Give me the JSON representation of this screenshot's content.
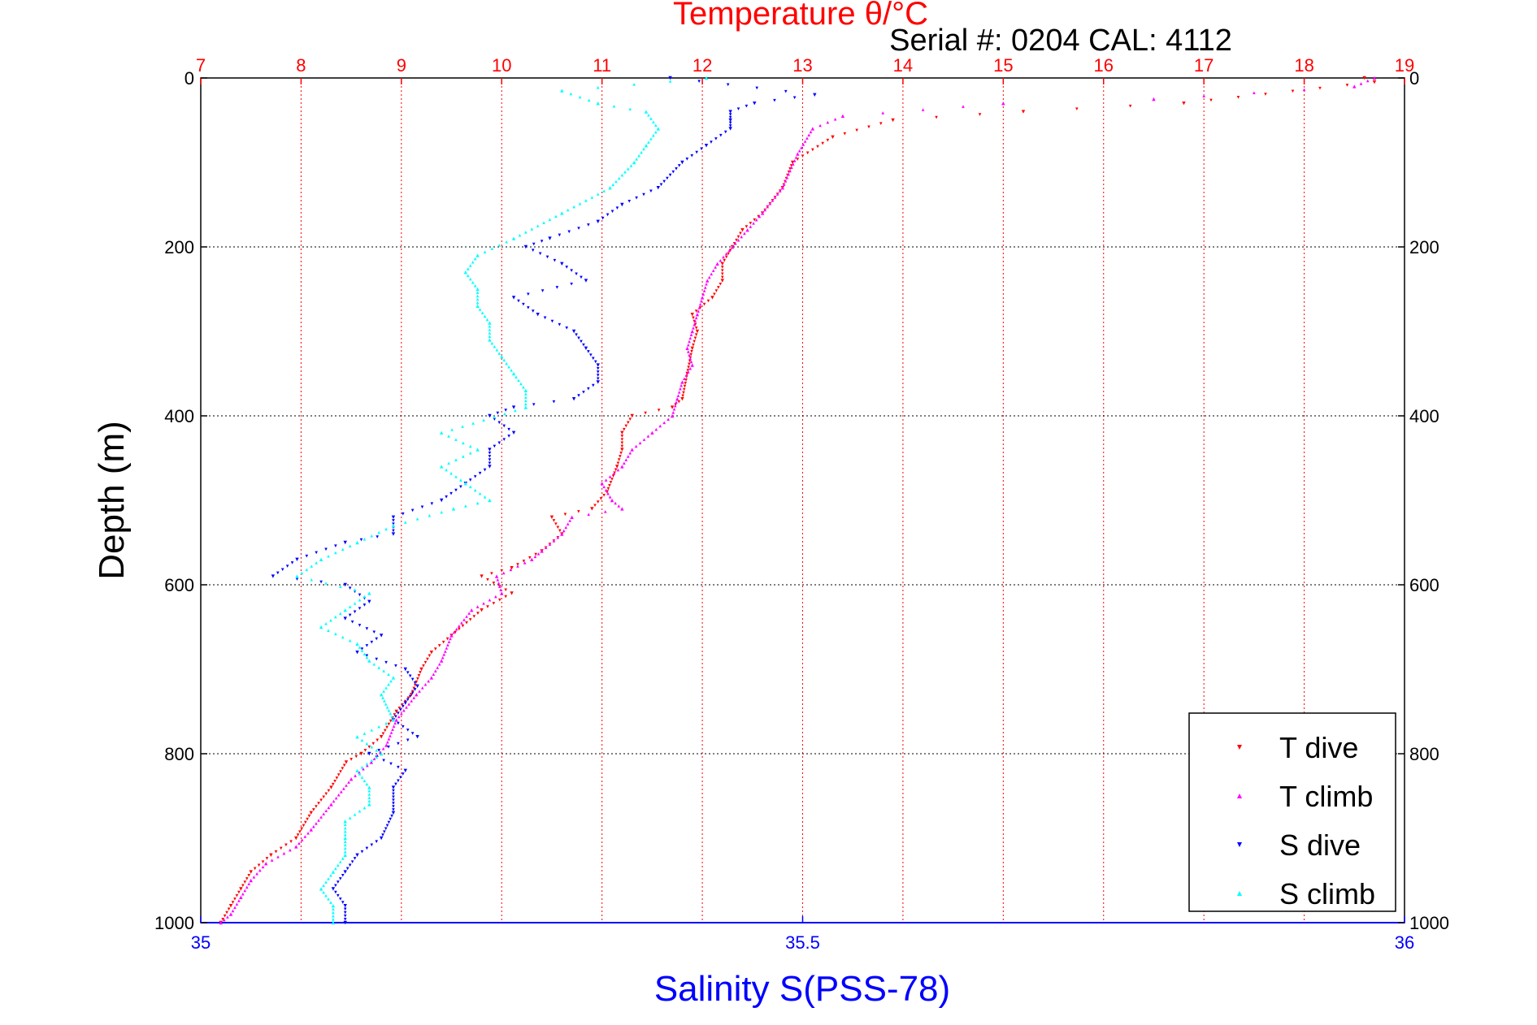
{
  "chart_data": {
    "type": "scatter",
    "title": "Temperature θ/°C",
    "subtitle": "Serial #: 0204  CAL: 4112",
    "ylabel": "Depth (m)",
    "xlabel_bottom": "Salinity S(PSS-78)",
    "ylim": [
      0,
      1000
    ],
    "yticks": [
      "0",
      "200",
      "400",
      "600",
      "800",
      "1000"
    ],
    "x_top": {
      "range": [
        7,
        19
      ],
      "ticks": [
        "7",
        "8",
        "9",
        "10",
        "11",
        "12",
        "13",
        "14",
        "15",
        "16",
        "17",
        "18",
        "19"
      ],
      "color": "#ff0000"
    },
    "x_bottom": {
      "range": [
        35,
        36
      ],
      "ticks": [
        "35",
        "35.5",
        "36"
      ],
      "color": "#0000ff"
    },
    "grid": true,
    "legend_position": "bottom-right",
    "series": [
      {
        "name": "T dive",
        "axis": "top",
        "color": "#ff0000",
        "marker": "triangle-down",
        "points": [
          [
            18.6,
            0
          ],
          [
            18.7,
            5
          ],
          [
            16.8,
            30
          ],
          [
            15.2,
            40
          ],
          [
            13.9,
            50
          ],
          [
            13.3,
            70
          ],
          [
            12.9,
            100
          ],
          [
            12.8,
            130
          ],
          [
            12.6,
            160
          ],
          [
            12.4,
            180
          ],
          [
            12.3,
            200
          ],
          [
            12.2,
            220
          ],
          [
            12.2,
            240
          ],
          [
            12.1,
            260
          ],
          [
            11.9,
            280
          ],
          [
            11.95,
            300
          ],
          [
            11.9,
            320
          ],
          [
            11.85,
            350
          ],
          [
            11.8,
            380
          ],
          [
            11.7,
            390
          ],
          [
            11.3,
            400
          ],
          [
            11.2,
            420
          ],
          [
            11.2,
            440
          ],
          [
            11.15,
            460
          ],
          [
            11.05,
            490
          ],
          [
            10.9,
            510
          ],
          [
            10.5,
            520
          ],
          [
            10.6,
            540
          ],
          [
            10.4,
            560
          ],
          [
            10.1,
            580
          ],
          [
            9.8,
            590
          ],
          [
            10.1,
            610
          ],
          [
            9.8,
            630
          ],
          [
            9.5,
            660
          ],
          [
            9.3,
            680
          ],
          [
            9.2,
            700
          ],
          [
            9.1,
            730
          ],
          [
            8.95,
            750
          ],
          [
            8.8,
            780
          ],
          [
            8.6,
            800
          ],
          [
            8.45,
            810
          ],
          [
            8.3,
            840
          ],
          [
            8.1,
            870
          ],
          [
            7.95,
            900
          ],
          [
            7.7,
            920
          ],
          [
            7.5,
            940
          ],
          [
            7.4,
            960
          ],
          [
            7.3,
            980
          ],
          [
            7.2,
            1000
          ]
        ]
      },
      {
        "name": "T climb",
        "axis": "top",
        "color": "#ff00ff",
        "marker": "triangle-up",
        "points": [
          [
            18.7,
            0
          ],
          [
            18.5,
            10
          ],
          [
            16.5,
            25
          ],
          [
            15.0,
            30
          ],
          [
            13.4,
            45
          ],
          [
            13.1,
            60
          ],
          [
            12.95,
            90
          ],
          [
            12.8,
            130
          ],
          [
            12.6,
            160
          ],
          [
            12.45,
            180
          ],
          [
            12.3,
            200
          ],
          [
            12.15,
            220
          ],
          [
            12.05,
            240
          ],
          [
            12.0,
            260
          ],
          [
            11.95,
            280
          ],
          [
            11.9,
            300
          ],
          [
            11.85,
            320
          ],
          [
            11.9,
            340
          ],
          [
            11.8,
            360
          ],
          [
            11.75,
            380
          ],
          [
            11.7,
            400
          ],
          [
            11.5,
            420
          ],
          [
            11.3,
            440
          ],
          [
            11.2,
            460
          ],
          [
            11.0,
            480
          ],
          [
            11.1,
            500
          ],
          [
            11.2,
            510
          ],
          [
            10.7,
            520
          ],
          [
            10.6,
            540
          ],
          [
            10.4,
            560
          ],
          [
            10.3,
            570
          ],
          [
            9.95,
            590
          ],
          [
            10.0,
            610
          ],
          [
            9.7,
            630
          ],
          [
            9.5,
            660
          ],
          [
            9.4,
            690
          ],
          [
            9.3,
            710
          ],
          [
            9.15,
            730
          ],
          [
            8.95,
            760
          ],
          [
            8.85,
            790
          ],
          [
            8.7,
            810
          ],
          [
            8.5,
            830
          ],
          [
            8.3,
            860
          ],
          [
            8.1,
            890
          ],
          [
            7.95,
            910
          ],
          [
            7.65,
            930
          ],
          [
            7.5,
            950
          ],
          [
            7.4,
            970
          ],
          [
            7.3,
            990
          ],
          [
            7.2,
            1000
          ]
        ]
      },
      {
        "name": "S dive",
        "axis": "bottom",
        "color": "#0000ff",
        "marker": "triangle-down",
        "points": [
          [
            35.39,
            0
          ],
          [
            35.51,
            20
          ],
          [
            35.46,
            30
          ],
          [
            35.44,
            40
          ],
          [
            35.44,
            50
          ],
          [
            35.44,
            60
          ],
          [
            35.42,
            80
          ],
          [
            35.4,
            100
          ],
          [
            35.38,
            130
          ],
          [
            35.35,
            150
          ],
          [
            35.33,
            170
          ],
          [
            35.29,
            190
          ],
          [
            35.27,
            200
          ],
          [
            35.3,
            220
          ],
          [
            35.32,
            240
          ],
          [
            35.26,
            260
          ],
          [
            35.28,
            280
          ],
          [
            35.31,
            300
          ],
          [
            35.32,
            320
          ],
          [
            35.33,
            340
          ],
          [
            35.33,
            360
          ],
          [
            35.31,
            380
          ],
          [
            35.26,
            390
          ],
          [
            35.24,
            400
          ],
          [
            35.26,
            420
          ],
          [
            35.24,
            440
          ],
          [
            35.24,
            460
          ],
          [
            35.22,
            480
          ],
          [
            35.2,
            500
          ],
          [
            35.16,
            520
          ],
          [
            35.16,
            540
          ],
          [
            35.12,
            550
          ],
          [
            35.08,
            570
          ],
          [
            35.06,
            590
          ],
          [
            35.12,
            600
          ],
          [
            35.14,
            620
          ],
          [
            35.12,
            640
          ],
          [
            35.15,
            660
          ],
          [
            35.13,
            680
          ],
          [
            35.17,
            700
          ],
          [
            35.18,
            720
          ],
          [
            35.17,
            740
          ],
          [
            35.16,
            760
          ],
          [
            35.18,
            780
          ],
          [
            35.14,
            800
          ],
          [
            35.17,
            820
          ],
          [
            35.16,
            840
          ],
          [
            35.16,
            870
          ],
          [
            35.15,
            900
          ],
          [
            35.13,
            920
          ],
          [
            35.12,
            940
          ],
          [
            35.11,
            960
          ],
          [
            35.12,
            980
          ],
          [
            35.12,
            1000
          ]
        ]
      },
      {
        "name": "S climb",
        "axis": "bottom",
        "color": "#00ffff",
        "marker": "triangle-up",
        "points": [
          [
            35.42,
            0
          ],
          [
            35.3,
            15
          ],
          [
            35.33,
            30
          ],
          [
            35.37,
            40
          ],
          [
            35.38,
            60
          ],
          [
            35.37,
            80
          ],
          [
            35.36,
            100
          ],
          [
            35.34,
            130
          ],
          [
            35.3,
            160
          ],
          [
            35.26,
            190
          ],
          [
            35.23,
            210
          ],
          [
            35.22,
            230
          ],
          [
            35.23,
            250
          ],
          [
            35.23,
            270
          ],
          [
            35.24,
            290
          ],
          [
            35.24,
            310
          ],
          [
            35.25,
            330
          ],
          [
            35.26,
            350
          ],
          [
            35.27,
            370
          ],
          [
            35.27,
            390
          ],
          [
            35.2,
            420
          ],
          [
            35.23,
            440
          ],
          [
            35.2,
            460
          ],
          [
            35.22,
            480
          ],
          [
            35.24,
            500
          ],
          [
            35.21,
            510
          ],
          [
            35.16,
            530
          ],
          [
            35.13,
            550
          ],
          [
            35.1,
            570
          ],
          [
            35.08,
            590
          ],
          [
            35.14,
            610
          ],
          [
            35.12,
            630
          ],
          [
            35.1,
            650
          ],
          [
            35.13,
            670
          ],
          [
            35.14,
            690
          ],
          [
            35.16,
            710
          ],
          [
            35.15,
            730
          ],
          [
            35.16,
            760
          ],
          [
            35.13,
            780
          ],
          [
            35.15,
            800
          ],
          [
            35.13,
            820
          ],
          [
            35.14,
            840
          ],
          [
            35.14,
            860
          ],
          [
            35.12,
            880
          ],
          [
            35.12,
            900
          ],
          [
            35.12,
            920
          ],
          [
            35.11,
            940
          ],
          [
            35.1,
            960
          ],
          [
            35.11,
            980
          ],
          [
            35.11,
            1000
          ]
        ]
      }
    ]
  }
}
